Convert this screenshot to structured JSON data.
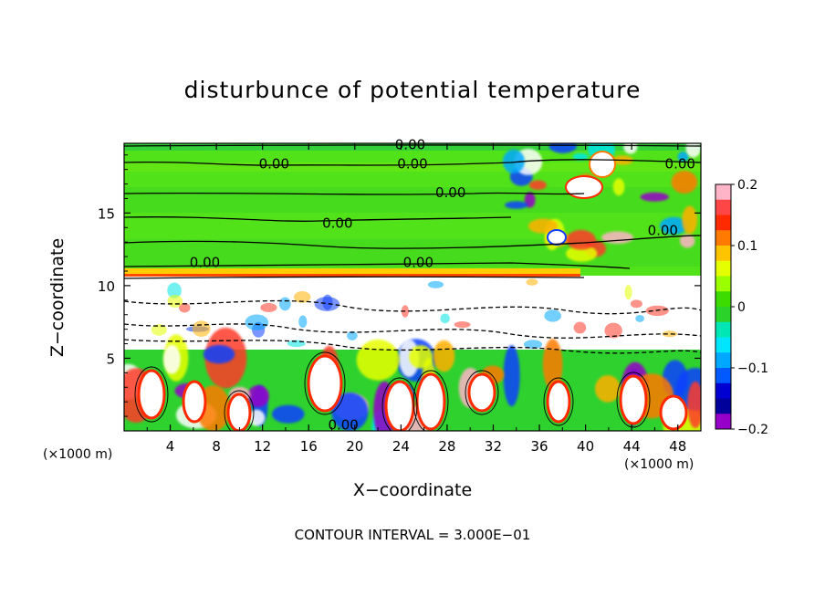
{
  "chart_data": {
    "type": "heatmap",
    "title": "disturbunce of potential temperature",
    "xlabel": "X−coordinate",
    "ylabel": "Z−coordinate",
    "x_unit": "(×1000 m)",
    "y_unit": "(×1000 m)",
    "footer": "CONTOUR INTERVAL = 3.000E−01",
    "xlim": [
      0,
      50
    ],
    "ylim": [
      0,
      19.8
    ],
    "x_ticks": [
      4,
      8,
      12,
      16,
      20,
      24,
      28,
      32,
      36,
      40,
      44,
      48
    ],
    "y_ticks": [
      5,
      10,
      15
    ],
    "colorbar": {
      "range": [
        -0.2,
        0.2
      ],
      "tick_values": [
        0.2,
        0.1,
        0,
        -0.1,
        -0.2
      ],
      "tick_labels": [
        "0.2",
        "0.1",
        "0",
        "−0.1",
        "−0.2"
      ],
      "colors": [
        "#ffb4c8",
        "#ff4646",
        "#ff2a00",
        "#ff7a00",
        "#ffc400",
        "#e6ff00",
        "#9cff00",
        "#3cdc00",
        "#2ad22a",
        "#00e6b4",
        "#00e6ff",
        "#00a8ff",
        "#005aff",
        "#0000d2",
        "#00009b",
        "#9600c8"
      ]
    },
    "contour_labels": [
      {
        "text": "0.00",
        "x": 24.8,
        "y": 19.7
      },
      {
        "text": "0.00",
        "x": 13.0,
        "y": 18.4
      },
      {
        "text": "0.00",
        "x": 25.0,
        "y": 18.4
      },
      {
        "text": "0.00",
        "x": 48.2,
        "y": 18.4
      },
      {
        "text": "0.00",
        "x": 28.3,
        "y": 16.4
      },
      {
        "text": "0.00",
        "x": 18.5,
        "y": 14.3
      },
      {
        "text": "0.00",
        "x": 46.7,
        "y": 13.8
      },
      {
        "text": "0.00",
        "x": 7.0,
        "y": 11.6
      },
      {
        "text": "0.00",
        "x": 25.5,
        "y": 11.6
      },
      {
        "text": "0.00",
        "x": 19.0,
        "y": 0.4
      }
    ]
  }
}
